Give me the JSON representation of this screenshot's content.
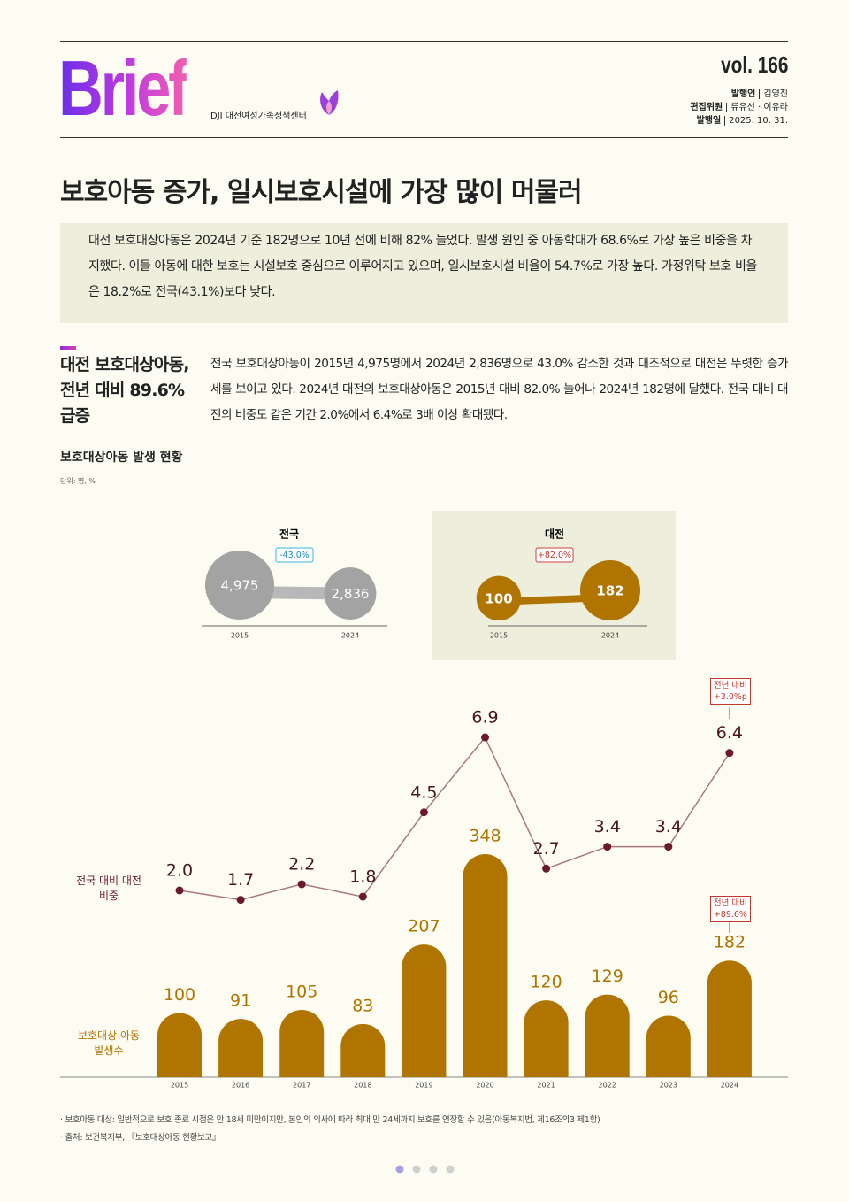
{
  "header": {
    "logo": "Brief",
    "org": "DJI 대전여성가족정책센터",
    "vol": "vol. 166",
    "publisher_label": "발행인",
    "publisher": "김영진",
    "editors_label": "편집위원",
    "editors": "류유선 · 이유라",
    "date_label": "발행일",
    "date": "2025. 10. 31."
  },
  "title": "보호아동 증가, 일시보호시설에 가장 많이 머물러",
  "summary": "대전 보호대상아동은 2024년 기준 182명으로 10년 전에 비해 82% 늘었다. 발생 원인 중 아동학대가 68.6%로 가장 높은 비중을 차지했다. 이들 아동에 대한 보호는 시설보호 중심으로 이루어지고 있으며, 일시보호시설 비율이 54.7%로 가장 높다. 가정위탁 보호 비율은 18.2%로 전국(43.1%)보다 낮다.",
  "section": {
    "heading": "대전 보호대상아동, 전년 대비 89.6% 급증",
    "body": "전국 보호대상아동이 2015년 4,975명에서 2024년 2,836명으로 43.0% 감소한 것과 대조적으로 대전은 뚜렷한 증가세를 보이고 있다. 2024년 대전의 보호대상아동은 2015년 대비 82.0% 늘어나 2024년 182명에 달했다. 전국 대비 대전의 비중도 같은 기간 2.0%에서 6.4%로 3배 이상 확대됐다.",
    "chart_title": "보호대상아동 발생 현황",
    "unit": "단위: 명, %"
  },
  "chart_data": [
    {
      "type": "bubble-pair",
      "title": "전국",
      "change_label": "-43.0%",
      "categories": [
        "2015",
        "2024"
      ],
      "values": [
        4975,
        2836
      ],
      "value_labels": [
        "4,975",
        "2,836"
      ],
      "color": "#a3a3a3"
    },
    {
      "type": "bubble-pair",
      "title": "대전",
      "change_label": "+82.0%",
      "categories": [
        "2015",
        "2024"
      ],
      "values": [
        100,
        182
      ],
      "color": "#b07400"
    },
    {
      "type": "bar-line",
      "categories": [
        "2015",
        "2016",
        "2017",
        "2018",
        "2019",
        "2020",
        "2021",
        "2022",
        "2023",
        "2024"
      ],
      "series": [
        {
          "name": "전국 대비 대전 비중",
          "color": "#6b1a2a",
          "values": [
            2.0,
            1.7,
            2.2,
            1.8,
            4.5,
            6.9,
            2.7,
            3.4,
            3.4,
            6.4
          ],
          "value_labels": [
            "2.0",
            "1.7",
            "2.2",
            "1.8",
            "4.5",
            "6.9",
            "2.7",
            "3.4",
            "3.4",
            "6.4"
          ]
        },
        {
          "name": "보호대상 아동 발생수",
          "color": "#b07400",
          "values": [
            100,
            91,
            105,
            83,
            207,
            348,
            120,
            129,
            96,
            182
          ]
        }
      ],
      "line_annotation": "전년 대비 +3.0%p",
      "bar_annotation": "전년 대비 +89.6%"
    }
  ],
  "footnotes": [
    "· 보호아동 대상: 일반적으로 보호 종료 시점은 만 18세 미만이지만, 본인의 의사에 따라 최대 만 24세까지 보호를 연장할 수 있음(아동복지법, 제16조의3 제1항)",
    "· 출처: 보건복지부, 『보호대상아동 현황보고』"
  ]
}
